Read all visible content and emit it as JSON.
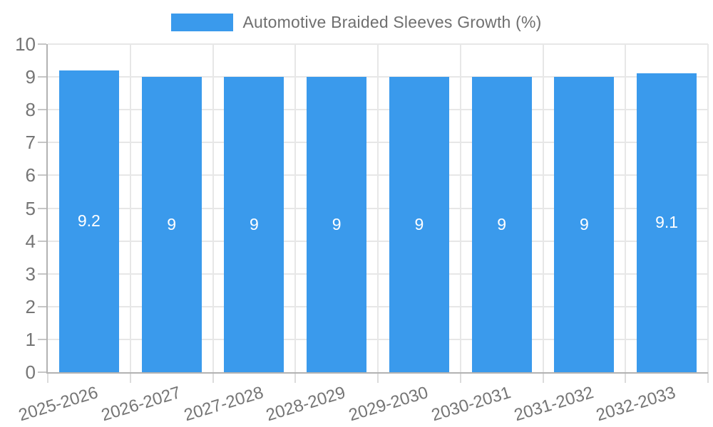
{
  "chart_data": {
    "type": "bar",
    "title": "Automotive Braided Sleeves Growth (%)",
    "categories": [
      "2025-2026",
      "2026-2027",
      "2027-2028",
      "2028-2029",
      "2029-2030",
      "2030-2031",
      "2031-2032",
      "2032-2033"
    ],
    "values": [
      9.2,
      9,
      9,
      9,
      9,
      9,
      9,
      9.1
    ],
    "xlabel": "",
    "ylabel": "",
    "ylim": [
      0,
      10
    ],
    "yticks": [
      0,
      1,
      2,
      3,
      4,
      5,
      6,
      7,
      8,
      9,
      10
    ],
    "grid": true,
    "legend_position": "top-center",
    "bar_color": "#3a9aec",
    "data_label_color": "#ffffff",
    "axis_color": "#b2b2b2",
    "grid_color": "#e7e7e7",
    "tick_text_color": "#757575"
  }
}
